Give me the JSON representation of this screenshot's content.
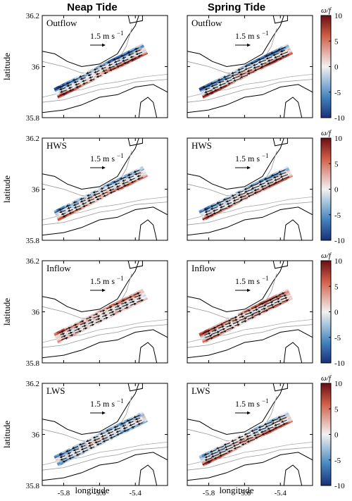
{
  "columns": [
    "Neap Tide",
    "Spring Tide"
  ],
  "rows": [
    "Outflow",
    "HWS",
    "Inflow",
    "LWS"
  ],
  "scale_label": "1.5 m s",
  "scale_exp": "−1",
  "colorbar": {
    "title_main": "ω",
    "title_div": "/",
    "title_f": "f",
    "ticks": [
      10,
      5,
      0,
      -5,
      -10
    ],
    "range": [
      -10,
      10
    ],
    "colors": {
      "low": "#1a2f7a",
      "mid": "#f2f2f2",
      "high": "#6a0d14"
    }
  },
  "chart_data": {
    "type": "heatmap",
    "xlabel": "longitude",
    "ylabel": "latitude",
    "xticks": [
      -5.8,
      -5.6,
      -5.4
    ],
    "yticks": [
      36.2,
      36,
      35.8
    ],
    "xlim": [
      -5.92,
      -5.22
    ],
    "ylim": [
      35.8,
      36.2
    ],
    "variable": "ω/f",
    "panels": [
      {
        "row": "Outflow",
        "column": "Neap Tide",
        "pattern": [
          1,
          -1,
          0.6
        ]
      },
      {
        "row": "Outflow",
        "column": "Spring Tide",
        "pattern": [
          1,
          -1,
          0.8
        ]
      },
      {
        "row": "HWS",
        "column": "Neap Tide",
        "pattern": [
          0.7,
          -0.6,
          0.5
        ]
      },
      {
        "row": "HWS",
        "column": "Spring Tide",
        "pattern": [
          0.8,
          -0.7,
          0.7
        ]
      },
      {
        "row": "Inflow",
        "column": "Neap Tide",
        "pattern": [
          0.3,
          0.7,
          0.2
        ]
      },
      {
        "row": "Inflow",
        "column": "Spring Tide",
        "pattern": [
          0.6,
          0.9,
          0.5
        ]
      },
      {
        "row": "LWS",
        "column": "Neap Tide",
        "pattern": [
          -0.5,
          -0.6,
          0.4
        ]
      },
      {
        "row": "LWS",
        "column": "Spring Tide",
        "pattern": [
          0.9,
          -0.4,
          0.9
        ]
      }
    ]
  }
}
